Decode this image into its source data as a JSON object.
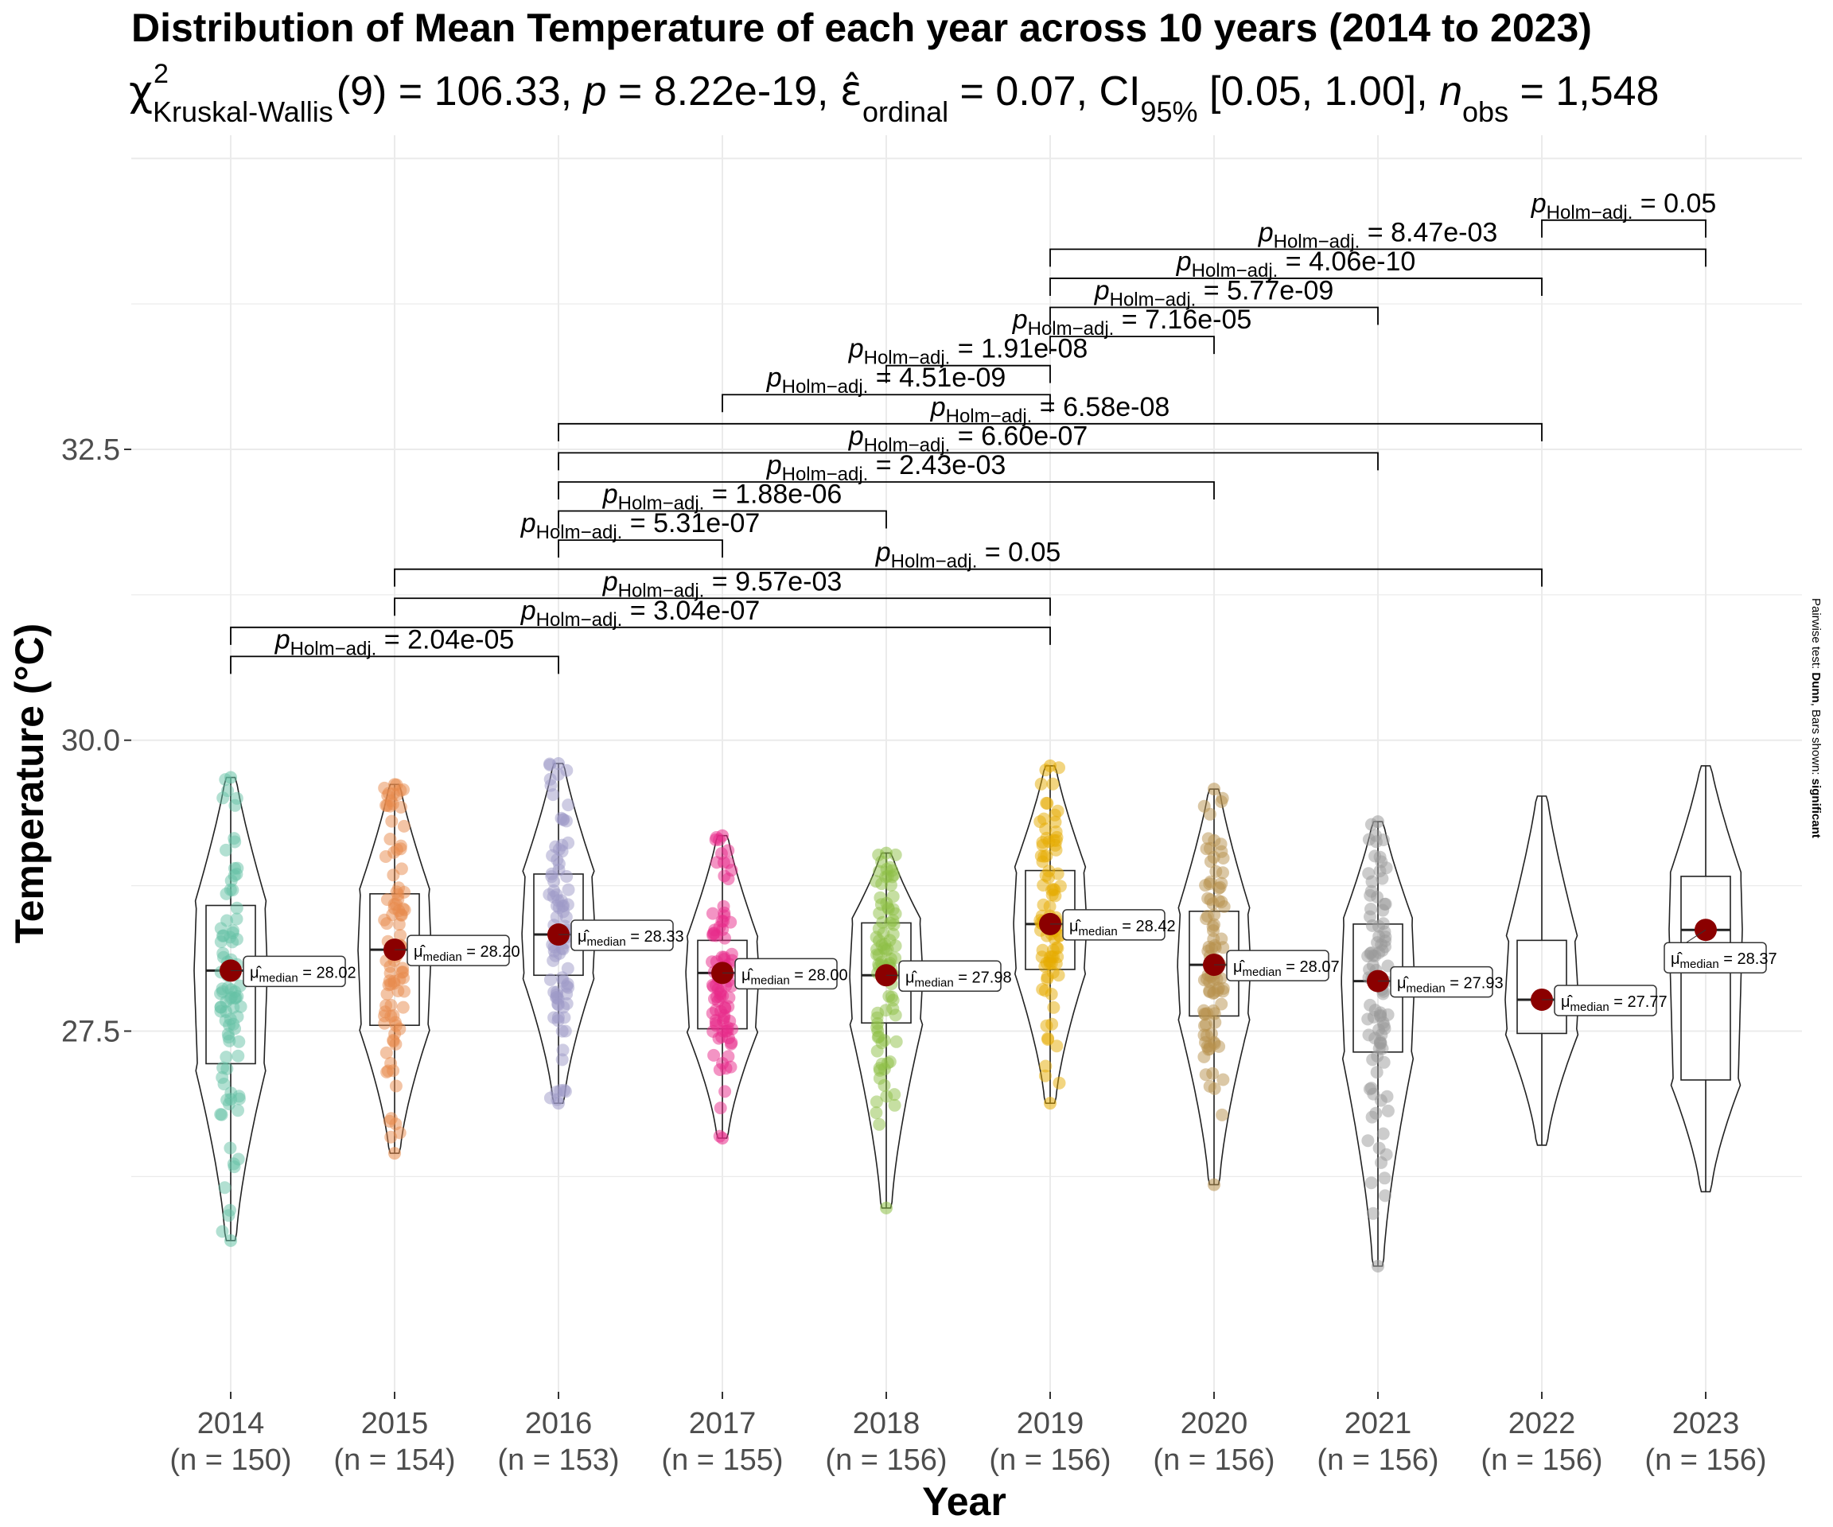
{
  "chart_data": {
    "type": "violin",
    "title": "Distribution of Mean Temperature of each year across 10 years (2014 to 2023)",
    "subtitle": {
      "stat_name": "Kruskal-Wallis",
      "df": "9",
      "statistic": "106.33",
      "p_value": "8.22e-19",
      "effsize_name": "ordinal",
      "effsize": "0.07",
      "ci_label": "95%",
      "ci": "[0.05, 1.00]",
      "n_obs": "1,548"
    },
    "xlabel": "Year",
    "ylabel": "Temperature (°C)",
    "ylim": [
      24.4,
      35.2
    ],
    "yticks": [
      27.5,
      30.0,
      32.5
    ],
    "ytick_labels": [
      "27.5",
      "30.0",
      "32.5"
    ],
    "caption": {
      "prefix": "Pairwise test: ",
      "test": "Dunn",
      "middle": ", Bars shown: ",
      "shown": "significant"
    },
    "median_label_sub": "median",
    "pair_label_sub": "Holm−adj.",
    "groups": [
      {
        "year": "2014",
        "n_label": "(n = 150)",
        "color": "#66C2A5",
        "median": 28.02,
        "median_label": "28.02",
        "q1": 27.22,
        "q3": 28.58,
        "min": 25.7,
        "max": 29.68,
        "has_points": true
      },
      {
        "year": "2015",
        "n_label": "(n = 154)",
        "color": "#E88A4B",
        "median": 28.2,
        "median_label": "28.20",
        "q1": 27.55,
        "q3": 28.68,
        "min": 26.45,
        "max": 29.62,
        "has_points": true
      },
      {
        "year": "2016",
        "n_label": "(n = 153)",
        "color": "#9E9AC8",
        "median": 28.33,
        "median_label": "28.33",
        "q1": 27.98,
        "q3": 28.85,
        "min": 26.88,
        "max": 29.8,
        "has_points": true
      },
      {
        "year": "2017",
        "n_label": "(n = 155)",
        "color": "#E7298A",
        "median": 28.0,
        "median_label": "28.00",
        "q1": 27.52,
        "q3": 28.28,
        "min": 26.58,
        "max": 29.18,
        "has_points": true
      },
      {
        "year": "2018",
        "n_label": "(n = 156)",
        "color": "#8DBF46",
        "median": 27.98,
        "median_label": "27.98",
        "q1": 27.57,
        "q3": 28.43,
        "min": 25.98,
        "max": 29.03,
        "has_points": true
      },
      {
        "year": "2019",
        "n_label": "(n = 156)",
        "color": "#E6AB02",
        "median": 28.42,
        "median_label": "28.42",
        "q1": 28.03,
        "q3": 28.88,
        "min": 26.88,
        "max": 29.78,
        "has_points": true
      },
      {
        "year": "2020",
        "n_label": "(n = 156)",
        "color": "#B8924E",
        "median": 28.07,
        "median_label": "28.07",
        "q1": 27.63,
        "q3": 28.53,
        "min": 26.18,
        "max": 29.58,
        "has_points": true
      },
      {
        "year": "2021",
        "n_label": "(n = 156)",
        "color": "#999999",
        "median": 27.93,
        "median_label": "27.93",
        "q1": 27.32,
        "q3": 28.42,
        "min": 25.48,
        "max": 29.3,
        "has_points": true
      },
      {
        "year": "2022",
        "n_label": "(n = 156)",
        "color": "#999999",
        "median": 27.77,
        "median_label": "27.77",
        "q1": 27.48,
        "q3": 28.28,
        "min": 26.52,
        "max": 29.52,
        "has_points": false
      },
      {
        "year": "2023",
        "n_label": "(n = 156)",
        "color": "#999999",
        "median": 28.37,
        "median_label": "28.37",
        "q1": 27.08,
        "q3": 28.83,
        "min": 26.12,
        "max": 29.78,
        "has_points": false
      }
    ],
    "pairwise": [
      {
        "from": 0,
        "to": 2,
        "y": 30.72,
        "p": "2.04e-05"
      },
      {
        "from": 0,
        "to": 5,
        "y": 30.97,
        "p": "3.04e-07"
      },
      {
        "from": 1,
        "to": 5,
        "y": 31.22,
        "p": "9.57e-03"
      },
      {
        "from": 1,
        "to": 8,
        "y": 31.47,
        "p": "0.05"
      },
      {
        "from": 2,
        "to": 3,
        "y": 31.72,
        "p": "5.31e-07"
      },
      {
        "from": 2,
        "to": 4,
        "y": 31.97,
        "p": "1.88e-06"
      },
      {
        "from": 2,
        "to": 6,
        "y": 32.22,
        "p": "2.43e-03"
      },
      {
        "from": 2,
        "to": 7,
        "y": 32.47,
        "p": "6.60e-07"
      },
      {
        "from": 2,
        "to": 8,
        "y": 32.72,
        "p": "6.58e-08"
      },
      {
        "from": 3,
        "to": 5,
        "y": 32.97,
        "p": "4.51e-09"
      },
      {
        "from": 4,
        "to": 5,
        "y": 33.22,
        "p": "1.91e-08"
      },
      {
        "from": 5,
        "to": 6,
        "y": 33.47,
        "p": "7.16e-05"
      },
      {
        "from": 5,
        "to": 7,
        "y": 33.72,
        "p": "5.77e-09"
      },
      {
        "from": 5,
        "to": 8,
        "y": 33.97,
        "p": "4.06e-10"
      },
      {
        "from": 5,
        "to": 9,
        "y": 34.22,
        "p": "8.47e-03"
      },
      {
        "from": 8,
        "to": 9,
        "y": 34.47,
        "p": "0.05"
      }
    ]
  }
}
